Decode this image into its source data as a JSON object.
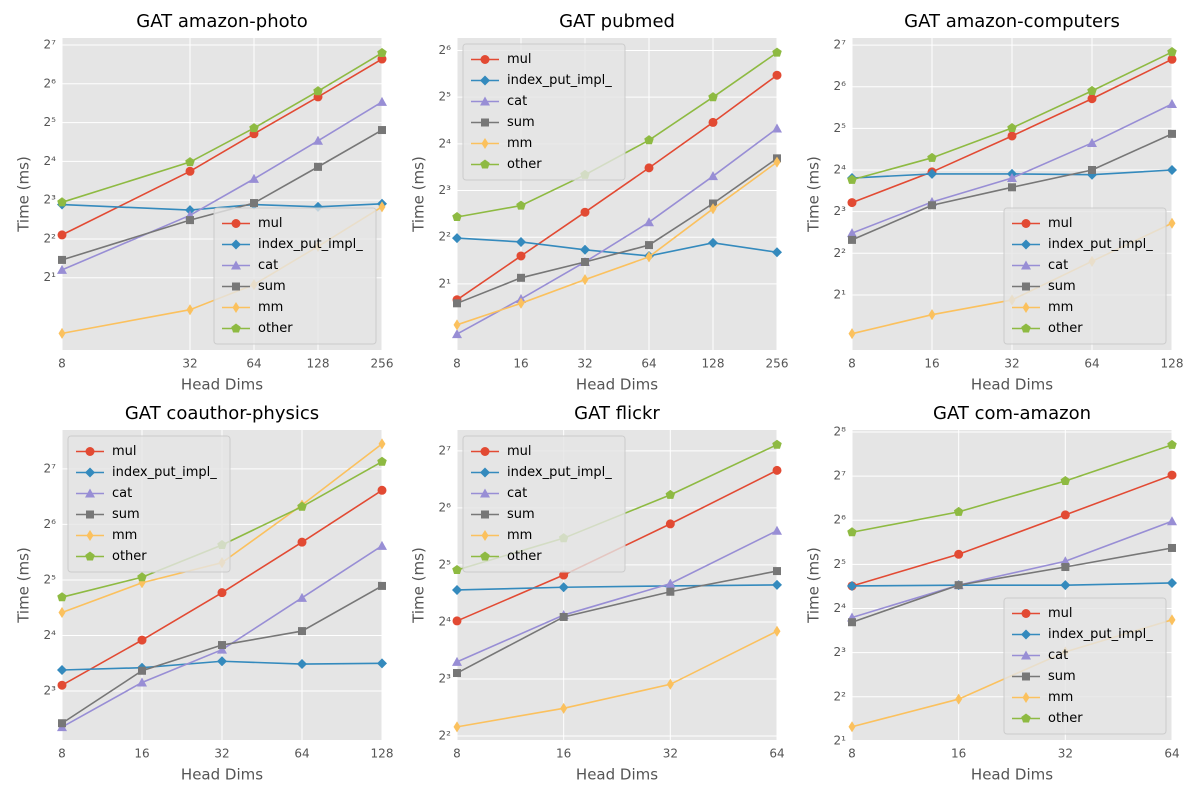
{
  "chart_data": [
    {
      "type": "line",
      "title": "GAT amazon-photo",
      "xlabel": "Head Dims",
      "ylabel": "Time (ms)",
      "log_x": 2,
      "log_y": 2,
      "grid": true,
      "legend": "lower right",
      "x": [
        8,
        32,
        64,
        128,
        256
      ],
      "xlim": [
        8,
        256
      ],
      "xticks": [
        8,
        32,
        64,
        128,
        256
      ],
      "ylim": [
        0.55,
        145
      ],
      "yticks": [
        {
          "value": 2,
          "label": "2¹"
        },
        {
          "value": 4,
          "label": "2²"
        },
        {
          "value": 8,
          "label": "2³"
        },
        {
          "value": 16,
          "label": "2⁴"
        },
        {
          "value": 32,
          "label": "2⁵"
        },
        {
          "value": 64,
          "label": "2⁶"
        },
        {
          "value": 128,
          "label": "2⁷"
        }
      ],
      "series": [
        {
          "name": "mul",
          "color": "#E24A33",
          "marker": "o",
          "values": [
            4.3,
            13.4,
            26.2,
            50.6,
            99.6
          ]
        },
        {
          "name": "index_put_impl_",
          "color": "#348ABD",
          "marker": "D",
          "values": [
            7.4,
            6.7,
            7.4,
            7.1,
            7.5
          ]
        },
        {
          "name": "cat",
          "color": "#988ED5",
          "marker": "^",
          "values": [
            2.3,
            6.1,
            11.7,
            23.1,
            46.3
          ]
        },
        {
          "name": "sum",
          "color": "#777777",
          "marker": "s",
          "values": [
            2.75,
            5.6,
            7.6,
            14.5,
            28.0
          ]
        },
        {
          "name": "mm",
          "color": "#FBC15E",
          "marker": "d",
          "values": [
            0.74,
            1.13,
            1.77,
            3.5,
            7.1
          ]
        },
        {
          "name": "other",
          "color": "#8EBA42",
          "marker": "p",
          "values": [
            7.7,
            15.8,
            29.0,
            56.1,
            111
          ]
        }
      ]
    },
    {
      "type": "line",
      "title": "GAT pubmed",
      "xlabel": "Head Dims",
      "ylabel": "Time (ms)",
      "log_x": 2,
      "log_y": 2,
      "grid": true,
      "legend": "upper left",
      "x": [
        8,
        16,
        32,
        64,
        128,
        256
      ],
      "xlim": [
        8,
        256
      ],
      "xticks": [
        8,
        16,
        32,
        64,
        128,
        256
      ],
      "ylim": [
        0.75,
        77
      ],
      "yticks": [
        {
          "value": 2,
          "label": "2¹"
        },
        {
          "value": 4,
          "label": "2²"
        },
        {
          "value": 8,
          "label": "2³"
        },
        {
          "value": 16,
          "label": "2⁴"
        },
        {
          "value": 32,
          "label": "2⁵"
        },
        {
          "value": 64,
          "label": "2⁶"
        }
      ],
      "series": [
        {
          "name": "mul",
          "color": "#E24A33",
          "marker": "o",
          "values": [
            1.58,
            3.03,
            5.8,
            11.2,
            22,
            44.3
          ]
        },
        {
          "name": "index_put_impl_",
          "color": "#348ABD",
          "marker": "D",
          "values": [
            3.95,
            3.73,
            3.32,
            3.03,
            3.68,
            3.2
          ]
        },
        {
          "name": "cat",
          "color": "#988ED5",
          "marker": "^",
          "values": [
            0.95,
            1.6,
            2.77,
            5.0,
            9.9,
            20.1
          ]
        },
        {
          "name": "sum",
          "color": "#777777",
          "marker": "s",
          "values": [
            1.5,
            2.19,
            2.77,
            3.56,
            6.6,
            12.9
          ]
        },
        {
          "name": "mm",
          "color": "#FBC15E",
          "marker": "d",
          "values": [
            1.09,
            1.5,
            2.13,
            2.99,
            6.1,
            12.2
          ]
        },
        {
          "name": "other",
          "color": "#8EBA42",
          "marker": "p",
          "values": [
            5.4,
            6.4,
            10.1,
            16.9,
            32,
            62
          ]
        }
      ]
    },
    {
      "type": "line",
      "title": "GAT amazon-computers",
      "xlabel": "Head Dims",
      "ylabel": "Time (ms)",
      "log_x": 2,
      "log_y": 2,
      "grid": true,
      "legend": "lower right",
      "x": [
        8,
        16,
        32,
        64,
        128
      ],
      "xlim": [
        8,
        128
      ],
      "xticks": [
        8,
        16,
        32,
        64,
        128
      ],
      "ylim": [
        0.8,
        144
      ],
      "yticks": [
        {
          "value": 2,
          "label": "2¹"
        },
        {
          "value": 4,
          "label": "2²"
        },
        {
          "value": 8,
          "label": "2³"
        },
        {
          "value": 16,
          "label": "2⁴"
        },
        {
          "value": 32,
          "label": "2⁵"
        },
        {
          "value": 64,
          "label": "2⁶"
        },
        {
          "value": 128,
          "label": "2⁷"
        }
      ],
      "series": [
        {
          "name": "mul",
          "color": "#E24A33",
          "marker": "o",
          "values": [
            9.3,
            15.5,
            28.2,
            52.4,
            101
          ]
        },
        {
          "name": "index_put_impl_",
          "color": "#348ABD",
          "marker": "D",
          "values": [
            14.0,
            15.0,
            15.0,
            14.8,
            16.0
          ]
        },
        {
          "name": "cat",
          "color": "#988ED5",
          "marker": "^",
          "values": [
            5.6,
            9.4,
            14.0,
            25.1,
            48
          ]
        },
        {
          "name": "sum",
          "color": "#777777",
          "marker": "s",
          "values": [
            5.0,
            8.9,
            12.0,
            16,
            29.2
          ]
        },
        {
          "name": "mm",
          "color": "#FBC15E",
          "marker": "d",
          "values": [
            1.05,
            1.44,
            1.84,
            3.5,
            6.6
          ]
        },
        {
          "name": "other",
          "color": "#8EBA42",
          "marker": "p",
          "values": [
            13.6,
            19.6,
            32.2,
            59.7,
            114
          ]
        }
      ]
    },
    {
      "type": "line",
      "title": "GAT coauthor-physics",
      "xlabel": "Head Dims",
      "ylabel": "Time (ms)",
      "log_x": 2,
      "log_y": 2,
      "grid": true,
      "legend": "upper left",
      "x": [
        8,
        16,
        32,
        64,
        128
      ],
      "xlim": [
        8,
        128
      ],
      "xticks": [
        8,
        16,
        32,
        64,
        128
      ],
      "ylim": [
        4.34,
        208
      ],
      "yticks": [
        {
          "value": 8,
          "label": "2³"
        },
        {
          "value": 16,
          "label": "2⁴"
        },
        {
          "value": 32,
          "label": "2⁵"
        },
        {
          "value": 64,
          "label": "2⁶"
        },
        {
          "value": 128,
          "label": "2⁷"
        }
      ],
      "series": [
        {
          "name": "mul",
          "color": "#E24A33",
          "marker": "o",
          "values": [
            8.6,
            15.1,
            27.3,
            51.3,
            98
          ]
        },
        {
          "name": "index_put_impl_",
          "color": "#348ABD",
          "marker": "D",
          "values": [
            10.4,
            10.7,
            11.6,
            11.2,
            11.3
          ]
        },
        {
          "name": "cat",
          "color": "#988ED5",
          "marker": "^",
          "values": [
            5.1,
            8.9,
            13.4,
            25.6,
            49
          ]
        },
        {
          "name": "sum",
          "color": "#777777",
          "marker": "s",
          "values": [
            5.35,
            10.3,
            14.2,
            16.9,
            29.7
          ]
        },
        {
          "name": "mm",
          "color": "#FBC15E",
          "marker": "d",
          "values": [
            21.3,
            30.9,
            39.7,
            81.6,
            175
          ]
        },
        {
          "name": "other",
          "color": "#8EBA42",
          "marker": "p",
          "values": [
            25.8,
            33.1,
            49.5,
            79.9,
            140
          ]
        }
      ]
    },
    {
      "type": "line",
      "title": "GAT flickr",
      "xlabel": "Head Dims",
      "ylabel": "Time (ms)",
      "log_x": 2,
      "log_y": 2,
      "grid": true,
      "legend": "upper left",
      "x": [
        8,
        16,
        32,
        64
      ],
      "xlim": [
        8,
        64
      ],
      "xticks": [
        8,
        16,
        32,
        64
      ],
      "ylim": [
        3.81,
        165
      ],
      "yticks": [
        {
          "value": 4,
          "label": "2²"
        },
        {
          "value": 8,
          "label": "2³"
        },
        {
          "value": 16,
          "label": "2⁴"
        },
        {
          "value": 32,
          "label": "2⁵"
        },
        {
          "value": 64,
          "label": "2⁶"
        },
        {
          "value": 128,
          "label": "2⁷"
        }
      ],
      "series": [
        {
          "name": "mul",
          "color": "#E24A33",
          "marker": "o",
          "values": [
            16.2,
            28.3,
            52.7,
            101
          ]
        },
        {
          "name": "index_put_impl_",
          "color": "#348ABD",
          "marker": "D",
          "values": [
            23.6,
            24.4,
            24.8,
            25.1
          ]
        },
        {
          "name": "cat",
          "color": "#988ED5",
          "marker": "^",
          "values": [
            9.85,
            17.4,
            25.5,
            48.5
          ]
        },
        {
          "name": "sum",
          "color": "#777777",
          "marker": "s",
          "values": [
            8.6,
            17.0,
            23.1,
            29.7
          ]
        },
        {
          "name": "mm",
          "color": "#FBC15E",
          "marker": "d",
          "values": [
            4.47,
            5.6,
            7.5,
            14.3
          ]
        },
        {
          "name": "other",
          "color": "#8EBA42",
          "marker": "p",
          "values": [
            30.1,
            44.3,
            75,
            138
          ]
        }
      ]
    },
    {
      "type": "line",
      "title": "GAT com-amazon",
      "xlabel": "Head Dims",
      "ylabel": "Time (ms)",
      "log_x": 2,
      "log_y": 2,
      "grid": true,
      "legend": "lower right",
      "x": [
        8,
        16,
        32,
        64
      ],
      "xlim": [
        8,
        64
      ],
      "xticks": [
        8,
        16,
        32,
        64
      ],
      "ylim": [
        2.03,
        264
      ],
      "yticks": [
        {
          "value": 2,
          "label": "2¹"
        },
        {
          "value": 4,
          "label": "2²"
        },
        {
          "value": 8,
          "label": "2³"
        },
        {
          "value": 16,
          "label": "2⁴"
        },
        {
          "value": 32,
          "label": "2⁵"
        },
        {
          "value": 64,
          "label": "2⁶"
        },
        {
          "value": 128,
          "label": "2⁷"
        },
        {
          "value": 256,
          "label": "2⁸"
        }
      ],
      "series": [
        {
          "name": "mul",
          "color": "#E24A33",
          "marker": "o",
          "values": [
            22.8,
            37.5,
            69.6,
            130
          ]
        },
        {
          "name": "index_put_impl_",
          "color": "#348ABD",
          "marker": "D",
          "values": [
            22.8,
            23.1,
            23.1,
            23.9
          ]
        },
        {
          "name": "cat",
          "color": "#988ED5",
          "marker": "^",
          "values": [
            13.9,
            23.1,
            33.6,
            63
          ]
        },
        {
          "name": "sum",
          "color": "#777777",
          "marker": "s",
          "values": [
            12.9,
            23.1,
            30.7,
            41.4
          ]
        },
        {
          "name": "mm",
          "color": "#FBC15E",
          "marker": "d",
          "values": [
            2.5,
            3.86,
            8.1,
            13.4
          ]
        },
        {
          "name": "other",
          "color": "#8EBA42",
          "marker": "p",
          "values": [
            53,
            73,
            118.6,
            209
          ]
        }
      ]
    }
  ]
}
